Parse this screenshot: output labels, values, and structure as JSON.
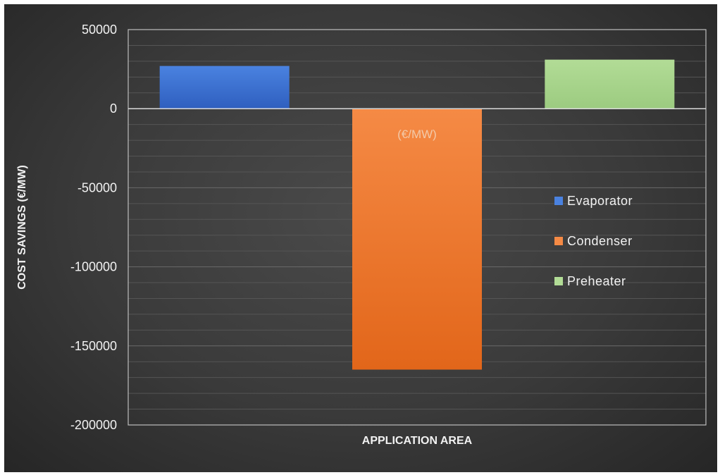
{
  "chart_data": {
    "type": "bar",
    "categories": [
      "Evaporator",
      "Condenser",
      "Preheater"
    ],
    "series": [
      {
        "name": "Evaporator",
        "values": [
          27000,
          null,
          null
        ],
        "color": "#3a6fd0"
      },
      {
        "name": "Condenser",
        "values": [
          null,
          -165000,
          null
        ],
        "color": "#f07828"
      },
      {
        "name": "Preheater",
        "values": [
          null,
          null,
          31000
        ],
        "color": "#a8d48c"
      }
    ],
    "xlabel": "APPLICATION AREA",
    "ylabel": "COST SAVINGS (€/MW)",
    "ylim": [
      -200000,
      50000
    ],
    "yticks": [
      50000,
      0,
      -50000,
      -100000,
      -150000,
      -200000
    ],
    "ytick_labels": [
      "50000",
      "0",
      "-50000",
      "-100000",
      "-150000",
      "-200000"
    ],
    "annotation": "(€/MW)",
    "grid": true,
    "legend_position": "right"
  }
}
